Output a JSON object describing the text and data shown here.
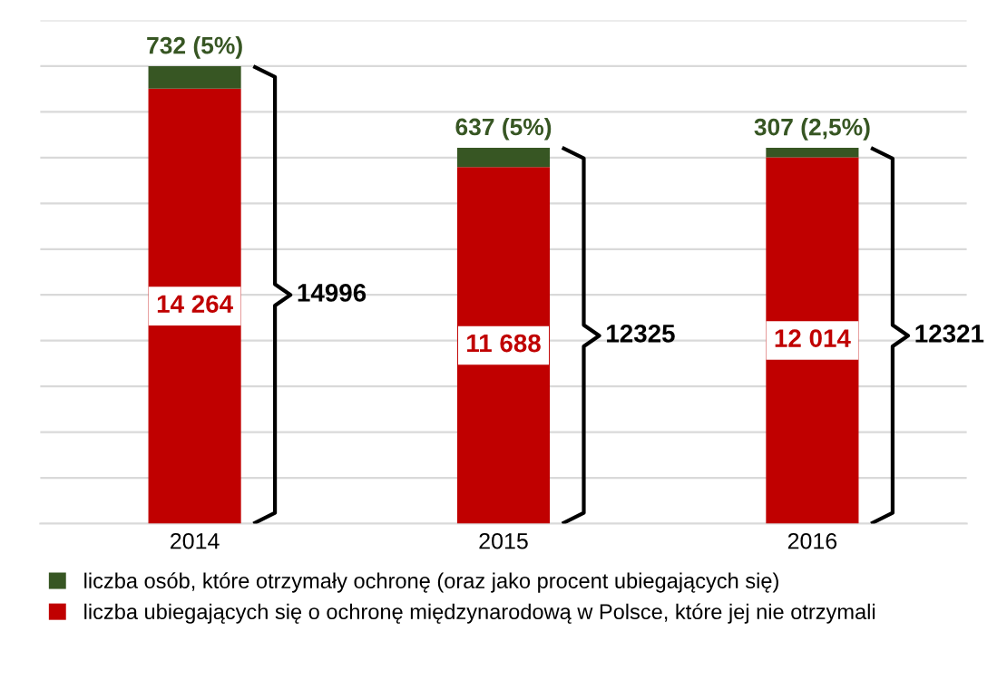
{
  "chart_data": {
    "type": "bar",
    "stacked": true,
    "categories": [
      "2014",
      "2015",
      "2016"
    ],
    "series": [
      {
        "name": "liczba ubiegających się o ochronę międzynarodową w Polsce, które jej nie otrzymali",
        "color": "#c00000",
        "values": [
          14264,
          11688,
          12014
        ],
        "value_labels": [
          "14 264",
          "11 688",
          "12 014"
        ]
      },
      {
        "name": "liczba osób, które otrzymały ochronę (oraz jako procent ubiegających się)",
        "color": "#375623",
        "values": [
          732,
          637,
          307
        ],
        "value_labels": [
          "732 (5%)",
          "637 (5%)",
          "307 (2,5%)"
        ]
      }
    ],
    "totals": [
      "14996",
      "12325",
      "12321"
    ],
    "ylim": [
      0,
      16500
    ],
    "yticks": [
      {
        "value": 0,
        "label": null
      },
      {
        "value": 1500,
        "label": null
      },
      {
        "value": 3000,
        "label": null
      },
      {
        "value": 4500,
        "label": null
      },
      {
        "value": 6000,
        "label": null
      },
      {
        "value": 7500,
        "label": null
      },
      {
        "value": 9000,
        "label": null
      },
      {
        "value": 10500,
        "label": null
      },
      {
        "value": 12000,
        "label": null
      },
      {
        "value": 13500,
        "label": null
      },
      {
        "value": 15000,
        "label": null
      },
      {
        "value": 16500,
        "label": null
      }
    ],
    "tick_labels": "x",
    "grid": "y",
    "legend": "bottom"
  }
}
